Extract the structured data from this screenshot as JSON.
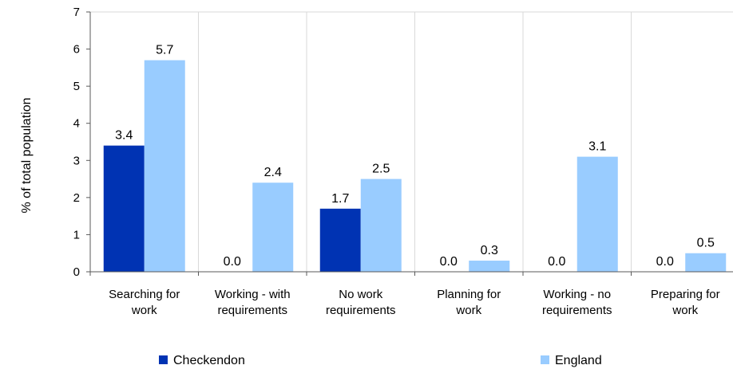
{
  "chart_data": {
    "type": "bar",
    "title": "",
    "xlabel": "",
    "ylabel": "% of total population",
    "ylim": [
      0,
      7
    ],
    "yticks": [
      "0",
      "1",
      "2",
      "3",
      "4",
      "5",
      "6",
      "7"
    ],
    "grid": "vertical separators between categories",
    "legend_position": "bottom",
    "categories": [
      [
        "Searching for",
        "work"
      ],
      [
        "Working - with",
        "requirements"
      ],
      [
        "No work",
        "requirements"
      ],
      [
        "Planning for",
        "work"
      ],
      [
        "Working - no",
        "requirements"
      ],
      [
        "Preparing for",
        "work"
      ]
    ],
    "series": [
      {
        "name": "Checkendon",
        "color": "#0033b3",
        "values": [
          3.4,
          0.0,
          1.7,
          0.0,
          0.0,
          0.0
        ],
        "labels": [
          "3.4",
          "0.0",
          "1.7",
          "0.0",
          "0.0",
          "0.0"
        ]
      },
      {
        "name": "England",
        "color": "#99ccff",
        "values": [
          5.7,
          2.4,
          2.5,
          0.3,
          3.1,
          0.5
        ],
        "labels": [
          "5.7",
          "2.4",
          "2.5",
          "0.3",
          "3.1",
          "0.5"
        ]
      }
    ]
  }
}
